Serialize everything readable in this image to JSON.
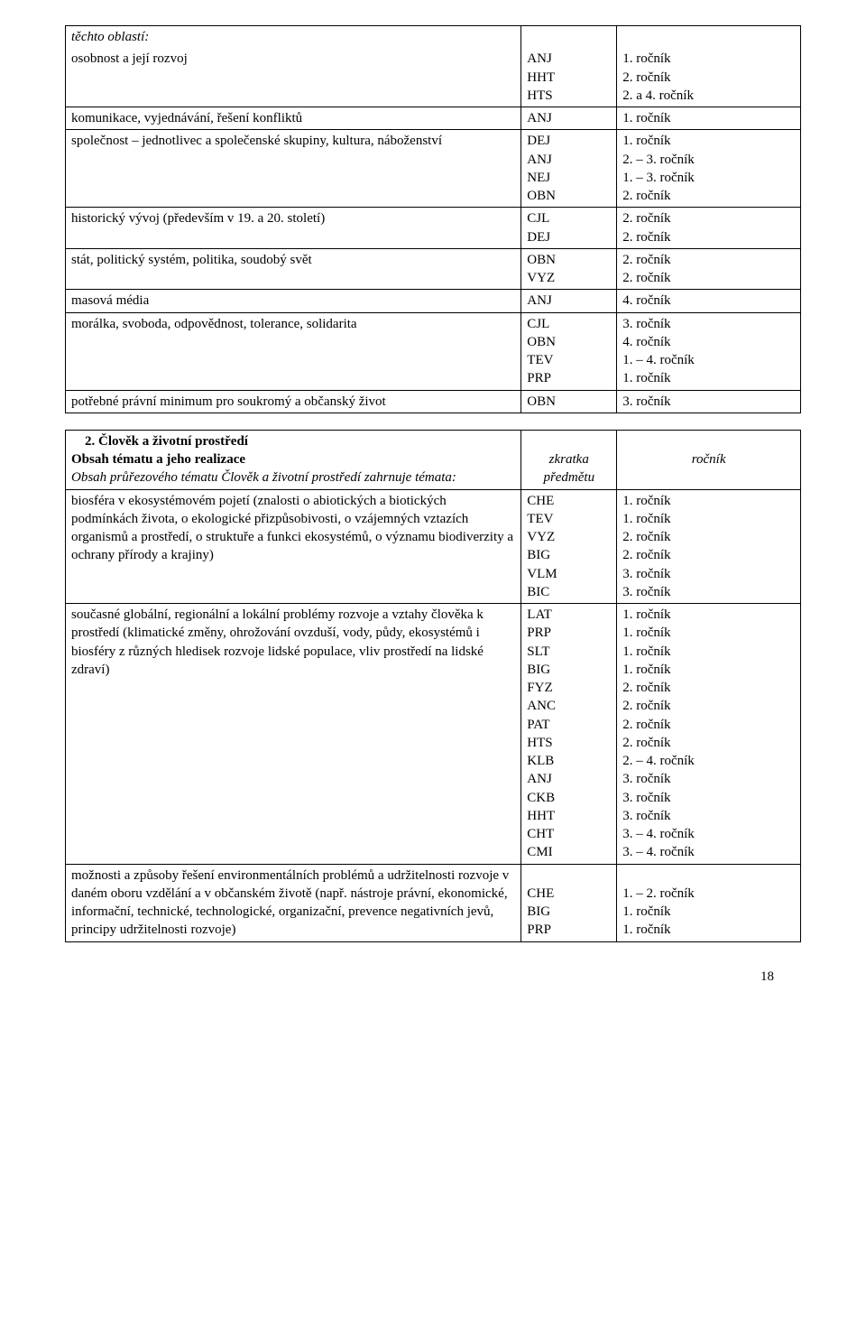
{
  "table1": {
    "rows": [
      {
        "left_html": "<span class='italic'>těchto oblastí:</span>",
        "left_classes": "no-bottom",
        "mid": "",
        "mid_classes": "no-bottom",
        "right": "",
        "right_classes": "no-bottom"
      },
      {
        "left_html": "osobnost a její rozvoj",
        "left_classes": "no-top",
        "mid": "ANJ\nHHT\nHTS",
        "mid_classes": "no-top",
        "right": "1. ročník\n2. ročník\n2. a 4. ročník",
        "right_classes": "no-top"
      },
      {
        "left_html": "komunikace, vyjednávání, řešení konfliktů",
        "mid": "ANJ",
        "right": "1. ročník"
      },
      {
        "left_html": "společnost – jednotlivec a společenské skupiny, kultura, náboženství",
        "mid": "DEJ\nANJ\nNEJ\nOBN",
        "right": "1. ročník\n2. – 3. ročník\n1. – 3. ročník\n2. ročník"
      },
      {
        "left_html": "historický vývoj (především v 19. a 20. století)",
        "mid": "CJL\nDEJ",
        "right": "2. ročník\n2. ročník"
      },
      {
        "left_html": "stát, politický systém, politika, soudobý svět",
        "mid": "OBN\nVYZ",
        "right": "2. ročník\n2. ročník"
      },
      {
        "left_html": "masová média",
        "mid": "ANJ",
        "right": "4. ročník"
      },
      {
        "left_html": "morálka, svoboda, odpovědnost, tolerance, solidarita",
        "mid": "CJL\nOBN\nTEV\nPRP",
        "right": "3. ročník\n4. ročník\n1. – 4. ročník\n1. ročník"
      },
      {
        "left_html": "potřebné právní minimum pro soukromý a občanský život",
        "mid": "OBN",
        "right": "3. ročník"
      }
    ]
  },
  "table2": {
    "rows": [
      {
        "left_html": "&nbsp;&nbsp;&nbsp;&nbsp;<span class='bold'>2. Člověk a životní prostředí</span><br><span class='bold'>Obsah tématu a jeho realizace</span><br><span class='italic'>Obsah průřezového tématu Člověk a životní prostředí zahrnuje témata:</span>",
        "mid_html": "<div class='center italic'><br>zkratka<br>předmětu</div>",
        "right_html": "<div class='center italic'><br>ročník</div>"
      },
      {
        "left_html": "biosféra v ekosystémovém pojetí (znalosti o abiotických a biotických podmínkách života, o ekologické přizpůsobivosti, o vzájemných vztazích organismů a prostředí, o struktuře a funkci ekosystémů, o významu biodiverzity a ochrany přírody a krajiny)",
        "mid": "CHE\nTEV\nVYZ\nBIG\nVLM\nBIC",
        "right": "1. ročník\n1. ročník\n2. ročník\n2. ročník\n3. ročník\n3. ročník"
      },
      {
        "left_html": "současné globální, regionální a lokální problémy rozvoje a vztahy člověka k prostředí (klimatické změny, ohrožování ovzduší, vody, půdy, ekosystémů i biosféry z různých hledisek rozvoje lidské populace, vliv prostředí na lidské zdraví)",
        "mid": "LAT\nPRP\nSLT\nBIG\nFYZ\nANC\nPAT\nHTS\nKLB\nANJ\nCKB\nHHT\nCHT\nCMI",
        "right": "1. ročník\n1. ročník\n1. ročník\n1. ročník\n2. ročník\n2. ročník\n2. ročník\n2. ročník\n2. – 4. ročník\n3. ročník\n3. ročník\n3. ročník\n3. – 4. ročník\n3. – 4. ročník"
      },
      {
        "left_html": "možnosti a způsoby řešení environmentálních problémů a udržitelnosti rozvoje v daném oboru vzdělání a v občanském životě (např. nástroje právní, ekonomické, informační, technické, technologické, organizační, prevence negativních jevů, principy udržitelnosti rozvoje)",
        "mid": "\nCHE\nBIG\nPRP",
        "right": "\n1. – 2. ročník\n1. ročník\n1. ročník"
      }
    ]
  },
  "pageNumber": "18"
}
